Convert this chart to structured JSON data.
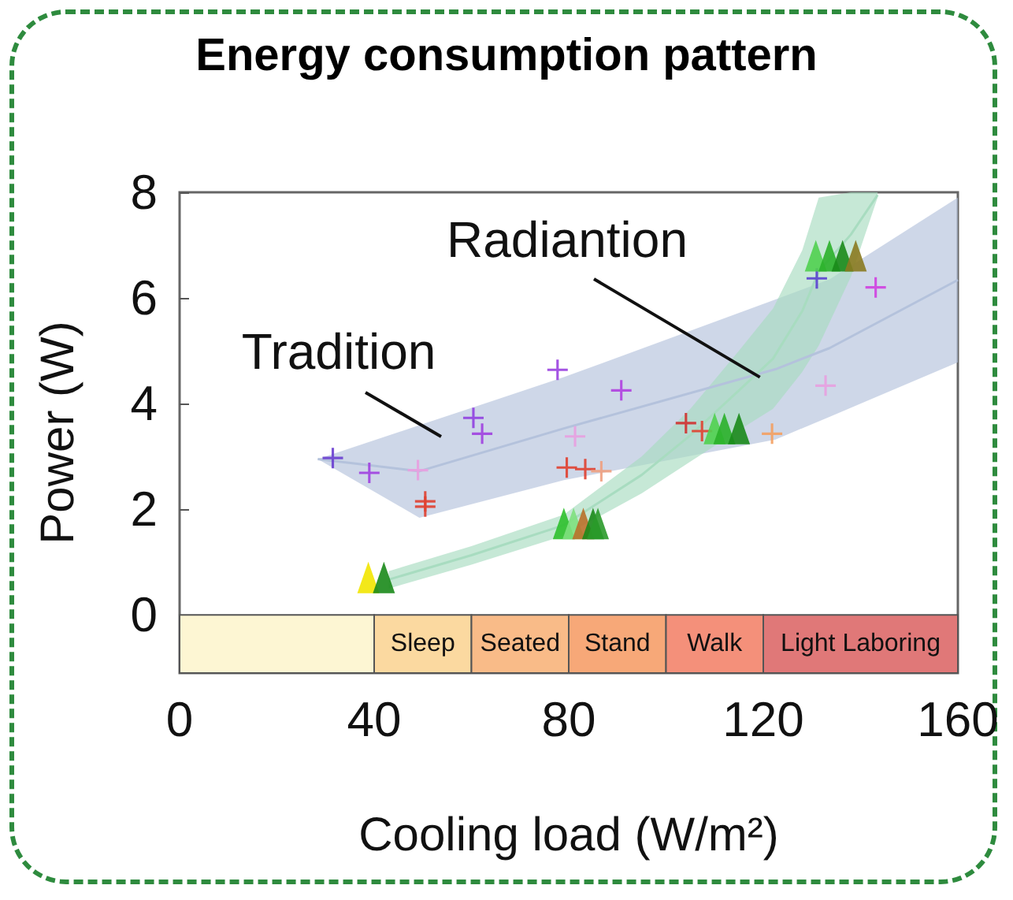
{
  "chart_data": {
    "type": "scatter",
    "title": "Energy consumption pattern",
    "xlabel": "Cooling load (W/m²)",
    "ylabel": "Power (W)",
    "xlim": [
      0,
      160
    ],
    "xticks": [
      0,
      40,
      80,
      120,
      160
    ],
    "ylim": [
      -1.1,
      8
    ],
    "yticks": [
      0,
      2,
      4,
      6,
      8
    ],
    "grid": false,
    "series": [
      {
        "type": "line",
        "color": "#b4c2dc",
        "x": [
          28.4,
          49.3,
          79,
          122.5,
          133.6,
          160
        ],
        "values": [
          2.95,
          2.72,
          3.53,
          4.65,
          5.05,
          6.34
        ],
        "lower": [
          2.95,
          1.84,
          2.55,
          3.32,
          3.75,
          4.78
        ],
        "upper": [
          2.95,
          3.59,
          4.5,
          5.97,
          6.35,
          7.9
        ]
      },
      {
        "type": "line",
        "color": "#a8dcc0",
        "x": [
          43,
          60,
          79,
          95,
          105,
          115,
          122,
          128,
          131.4,
          138,
          143.5
        ],
        "values": [
          0.67,
          1.13,
          1.7,
          2.65,
          3.4,
          4.25,
          4.85,
          5.75,
          6.5,
          7.2,
          7.95
        ],
        "lower": [
          0.5,
          0.95,
          1.5,
          2.3,
          2.9,
          3.5,
          3.9,
          4.6,
          5.1,
          6.4,
          7.9
        ],
        "upper": [
          0.83,
          1.3,
          1.9,
          3.0,
          3.9,
          5.0,
          5.8,
          6.9,
          7.9,
          8,
          8
        ]
      },
      {
        "marker": "cross",
        "x": [
          31.5,
          39,
          49,
          50.5,
          50.5,
          60.4,
          62.2,
          77.7,
          81.3,
          79.6,
          83.4,
          86.7,
          90.8,
          104.1,
          107.4,
          121.8,
          132.8,
          131,
          143.1
        ],
        "values": [
          2.97,
          2.69,
          2.74,
          2.15,
          2.05,
          3.73,
          3.43,
          4.64,
          3.38,
          2.79,
          2.76,
          2.72,
          4.25,
          3.63,
          3.48,
          3.43,
          4.34,
          6.37,
          6.2
        ],
        "colors": [
          "#6a3fd0",
          "#a040e0",
          "#e8a0e0",
          "#e04030",
          "#e04030",
          "#9040e0",
          "#a040e0",
          "#9a40e0",
          "#e8a0e0",
          "#e04030",
          "#e04030",
          "#f0a080",
          "#b040e0",
          "#d03030",
          "#e04030",
          "#f4a060",
          "#e8a0e0",
          "#5a40d0",
          "#d040e0"
        ]
      },
      {
        "marker": "triangle",
        "x": [
          38.8,
          42,
          79,
          81,
          83,
          85,
          86,
          110,
          112,
          115,
          130.8,
          133.6,
          136.3,
          139
        ],
        "values": [
          0.71,
          0.71,
          1.73,
          1.73,
          1.73,
          1.73,
          1.73,
          3.53,
          3.53,
          3.53,
          6.8,
          6.8,
          6.8,
          6.8
        ],
        "colors": [
          "#f2e600",
          "#1a8a1a",
          "#2ec02e",
          "#7ee07e",
          "#b8702a",
          "#1a8a1a",
          "#2a9a2a",
          "#50d050",
          "#2ab02a",
          "#1a8a1a",
          "#50d050",
          "#2ab02a",
          "#1a8a1a",
          "#8a7a20"
        ]
      }
    ],
    "bands": [
      {
        "axis": "x",
        "from": 0,
        "to": 40,
        "color": "#fdf6d3"
      },
      {
        "axis": "x",
        "from": 40,
        "to": 60,
        "label": "Sleep",
        "color": "#fbd9a0"
      },
      {
        "axis": "x",
        "from": 60,
        "to": 80,
        "label": "Seated",
        "color": "#f9bb88"
      },
      {
        "axis": "x",
        "from": 80,
        "to": 100,
        "label": "Stand",
        "color": "#f7a878"
      },
      {
        "axis": "x",
        "from": 100,
        "to": 120,
        "label": "Walk",
        "color": "#f4907a"
      },
      {
        "axis": "x",
        "from": 120,
        "to": 160,
        "label": "Light Laboring",
        "color": "#e07878"
      }
    ],
    "annotations": [
      "Tradition",
      {
        "text": "Radiantion",
        "x": 119.3,
        "y": 4.5
      }
    ]
  }
}
